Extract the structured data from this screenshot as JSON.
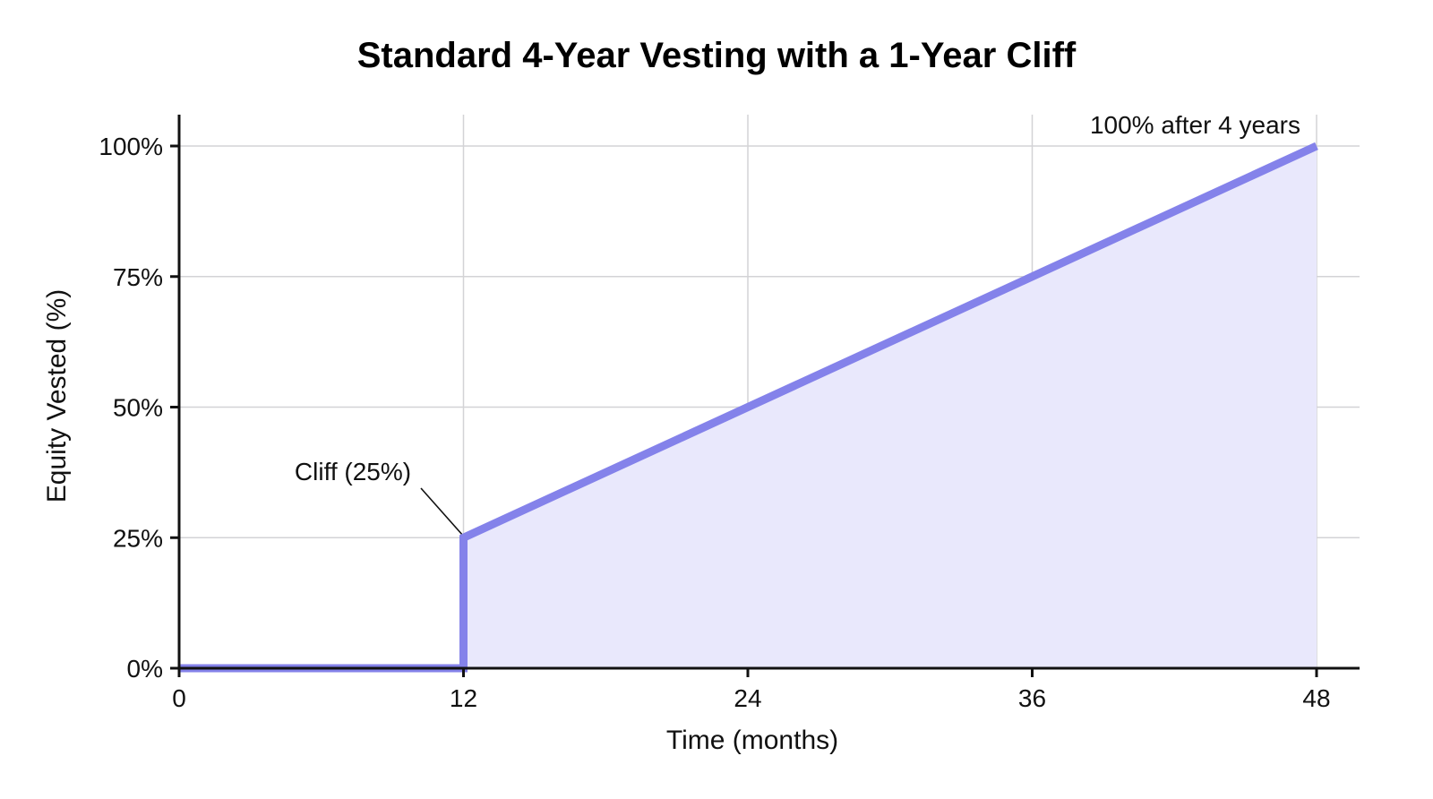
{
  "chart_data": {
    "type": "line",
    "title": "Standard 4-Year Vesting with a 1-Year Cliff",
    "xlabel": "Time (months)",
    "ylabel": "Equity Vested (%)",
    "xlim": [
      0,
      48
    ],
    "ylim": [
      0,
      100
    ],
    "x_ticks": [
      0,
      12,
      24,
      36,
      48
    ],
    "y_ticks": [
      0,
      25,
      50,
      75,
      100
    ],
    "x_tick_labels": [
      "0",
      "12",
      "24",
      "36",
      "48"
    ],
    "y_tick_labels": [
      "0%",
      "25%",
      "50%",
      "75%",
      "100%"
    ],
    "grid": true,
    "fill_under_line": true,
    "series": [
      {
        "points": [
          {
            "x": 0,
            "y": 0
          },
          {
            "x": 12,
            "y": 0
          },
          {
            "x": 12,
            "y": 25
          },
          {
            "x": 48,
            "y": 100
          }
        ],
        "color": "#8482ea",
        "fill_color": "#e9e8fc"
      }
    ],
    "annotations": [
      {
        "text": "Cliff (25%)",
        "x": 12,
        "y": 25,
        "arrow": true
      },
      {
        "text": "100% after 4 years",
        "x": 48,
        "y": 100,
        "arrow": false
      }
    ]
  }
}
